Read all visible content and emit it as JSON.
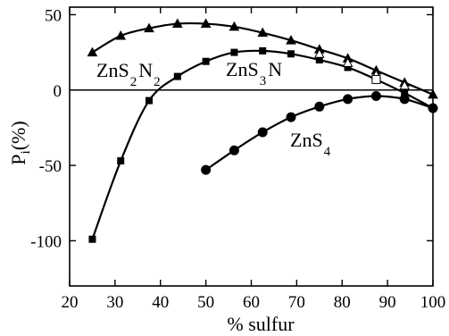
{
  "chart_data": {
    "type": "line",
    "title": "",
    "xlabel": "% sulfur",
    "ylabel": {
      "main": "P",
      "sub": "i",
      "suffix": "(%)"
    },
    "xlim": [
      20,
      100
    ],
    "ylim": [
      -130,
      55
    ],
    "x_ticks": [
      20,
      30,
      40,
      50,
      60,
      70,
      80,
      90,
      100
    ],
    "y_ticks": [
      50,
      0,
      -50,
      -100
    ],
    "y_tick_labels": [
      "50",
      "0",
      "-50",
      "-100"
    ],
    "zero_line": true,
    "grid": false,
    "legend": "none (inline curve labels)",
    "series": [
      {
        "label_parts": [
          "ZnS",
          "2",
          "N",
          "2"
        ],
        "label_position": "upper-left",
        "marker": "filled-triangle",
        "x": [
          25,
          31.25,
          37.5,
          43.75,
          50,
          56.25,
          62.5,
          68.75,
          75,
          81.25,
          87.5,
          93.75,
          100
        ],
        "y": [
          25,
          36,
          41,
          44,
          44,
          42,
          38,
          33,
          27,
          21,
          13,
          5,
          -3
        ]
      },
      {
        "label_parts": [
          "ZnS",
          "3",
          "N"
        ],
        "label_position": "upper-middle",
        "marker": "filled-square",
        "x": [
          25,
          31.25,
          37.5,
          43.75,
          50,
          56.25,
          62.5,
          68.75,
          75,
          81.25,
          87.5,
          93.75,
          100
        ],
        "y": [
          -99,
          -47,
          -7,
          9,
          19,
          25,
          26,
          24,
          20,
          15,
          7,
          -2,
          -12
        ]
      },
      {
        "label_parts": [
          "ZnS",
          "4"
        ],
        "label_position": "lower-right",
        "marker": "filled-circle",
        "x": [
          50,
          56.25,
          62.5,
          68.75,
          75,
          81.25,
          87.5,
          93.75,
          100
        ],
        "y": [
          -53,
          -40,
          -28,
          -18,
          -11,
          -6,
          -4,
          -6,
          -12
        ]
      },
      {
        "marker": "open-triangle",
        "x": [
          75,
          81.25,
          87.5,
          93.75
        ],
        "y": [
          24,
          18,
          10,
          3
        ]
      },
      {
        "marker": "open-square",
        "x": [
          87.5
        ],
        "y": [
          7
        ]
      }
    ]
  }
}
